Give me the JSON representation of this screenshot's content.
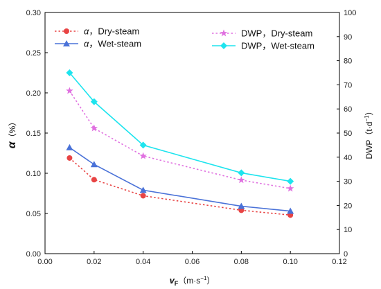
{
  "chart_data": {
    "type": "line",
    "x": [
      0.01,
      0.02,
      0.04,
      0.08,
      0.1
    ],
    "xlabel_main": "v",
    "xlabel_sub": "F",
    "xlabel_unit": "（m·s",
    "xlabel_unit_sup": "−1",
    "xlabel_unit_close": "）",
    "xlim": [
      0.0,
      0.12
    ],
    "xticks": [
      "0.00",
      "0.02",
      "0.04",
      "0.06",
      "0.08",
      "0.10",
      "0.12"
    ],
    "ylabel_left_main": "α",
    "ylabel_left_unit": "（%）",
    "ylim_left": [
      0.0,
      0.3
    ],
    "yticks_left": [
      "0.00",
      "0.05",
      "0.10",
      "0.15",
      "0.20",
      "0.25",
      "0.30"
    ],
    "ylabel_right": "DWP（t·d",
    "ylabel_right_sup": "−1",
    "ylabel_right_close": "）",
    "ylim_right": [
      0,
      100
    ],
    "yticks_right": [
      "0",
      "10",
      "20",
      "30",
      "40",
      "50",
      "60",
      "70",
      "80",
      "90",
      "100"
    ],
    "grid": false,
    "legend_left": "top-left",
    "legend_right": "top-right",
    "series": [
      {
        "name_symbol": "α",
        "name_rest": "，Dry-steam",
        "axis": "left",
        "values": [
          0.119,
          0.092,
          0.072,
          0.054,
          0.048
        ],
        "color": "#e84444",
        "marker": "circle",
        "dash": true
      },
      {
        "name_symbol": "α",
        "name_rest": "，Wet-steam",
        "axis": "left",
        "values": [
          0.132,
          0.111,
          0.079,
          0.059,
          0.053
        ],
        "color": "#4a72d8",
        "marker": "triangle",
        "dash": false
      },
      {
        "name_symbol": "",
        "name_rest": "DWP，Dry-steam",
        "axis": "right",
        "values": [
          67.5,
          52,
          40.5,
          30.5,
          27
        ],
        "color": "#e070e0",
        "marker": "star",
        "dash": true
      },
      {
        "name_symbol": "",
        "name_rest": "DWP，Wet-steam",
        "axis": "right",
        "values": [
          75,
          63,
          45,
          33.5,
          30
        ],
        "color": "#1ee4ee",
        "marker": "diamond",
        "dash": false
      }
    ]
  }
}
